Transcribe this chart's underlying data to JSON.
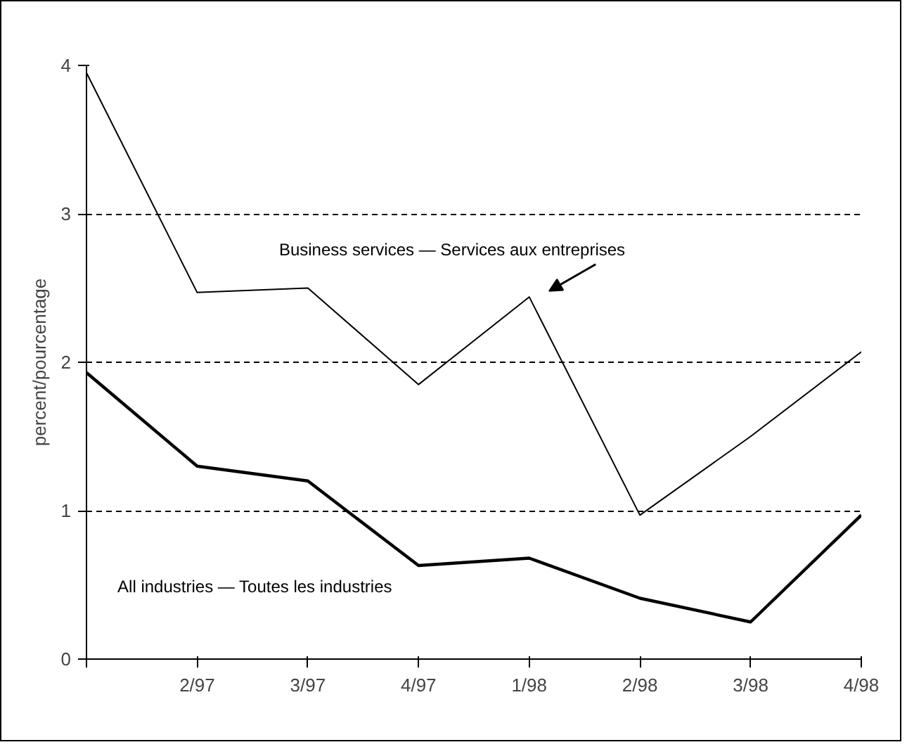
{
  "chart_data": {
    "type": "line",
    "ylabel": "percent/pourcentage",
    "categories": [
      null,
      "2/97",
      "3/97",
      "4/97",
      "1/98",
      "2/98",
      "3/98",
      "4/98"
    ],
    "series": [
      {
        "name": "Business services — Services aux entreprises",
        "color": "#000000",
        "values": [
          3.95,
          2.47,
          2.5,
          1.85,
          2.44,
          0.97,
          1.5,
          2.07
        ]
      },
      {
        "name": "All industries — Toutes les industries",
        "color": "#000000",
        "values": [
          1.93,
          1.3,
          1.2,
          0.63,
          0.68,
          0.41,
          0.25,
          0.97
        ]
      }
    ],
    "ylim": [
      0,
      4
    ],
    "yticks": [
      0,
      1,
      2,
      3,
      4
    ],
    "grid": "y",
    "marker": "none",
    "line_style": "solid"
  }
}
